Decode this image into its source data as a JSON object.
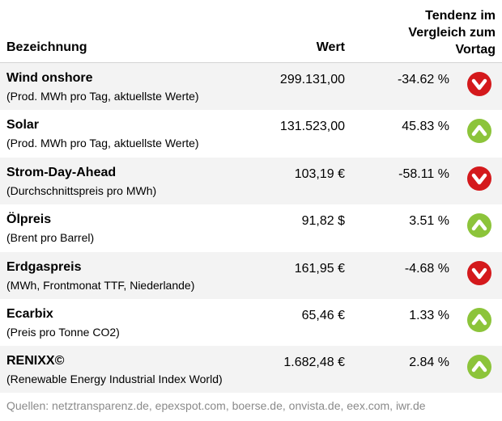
{
  "header": {
    "name": "Bezeichnung",
    "value": "Wert",
    "trend": "Tendenz im\nVergleich zum\nVortag"
  },
  "rows": [
    {
      "name": "Wind onshore",
      "desc": "(Prod. MWh pro Tag, aktuellste Werte)",
      "value": "299.131,00",
      "pct": "-34.62 %",
      "trend": "down"
    },
    {
      "name": "Solar",
      "desc": "(Prod. MWh pro Tag, aktuellste Werte)",
      "value": "131.523,00",
      "pct": "45.83 %",
      "trend": "up"
    },
    {
      "name": "Strom-Day-Ahead",
      "desc": "(Durchschnittspreis pro MWh)",
      "value": "103,19 €",
      "pct": "-58.11 %",
      "trend": "down"
    },
    {
      "name": "Ölpreis",
      "desc": "(Brent pro Barrel)",
      "value": "91,82 $",
      "pct": "3.51 %",
      "trend": "up"
    },
    {
      "name": "Erdgaspreis",
      "desc": "(MWh, Frontmonat TTF, Niederlande)",
      "value": "161,95 €",
      "pct": "-4.68 %",
      "trend": "down"
    },
    {
      "name": "Ecarbix",
      "desc": "(Preis pro Tonne CO2)",
      "value": "65,46 €",
      "pct": "1.33 %",
      "trend": "up"
    },
    {
      "name": "RENIXX©",
      "desc": "(Renewable Energy Industrial Index World)",
      "value": "1.682,48 €",
      "pct": "2.84 %",
      "trend": "up"
    }
  ],
  "footer": "Quellen: netztransparenz.de, epexspot.com, boerse.de, onvista.de, eex.com, iwr.de",
  "colors": {
    "up": "#8cc43a",
    "down": "#d4191c",
    "shade": "#f3f3f3"
  },
  "icons": {
    "up": "arrow-up-circle-icon",
    "down": "arrow-down-circle-icon"
  }
}
